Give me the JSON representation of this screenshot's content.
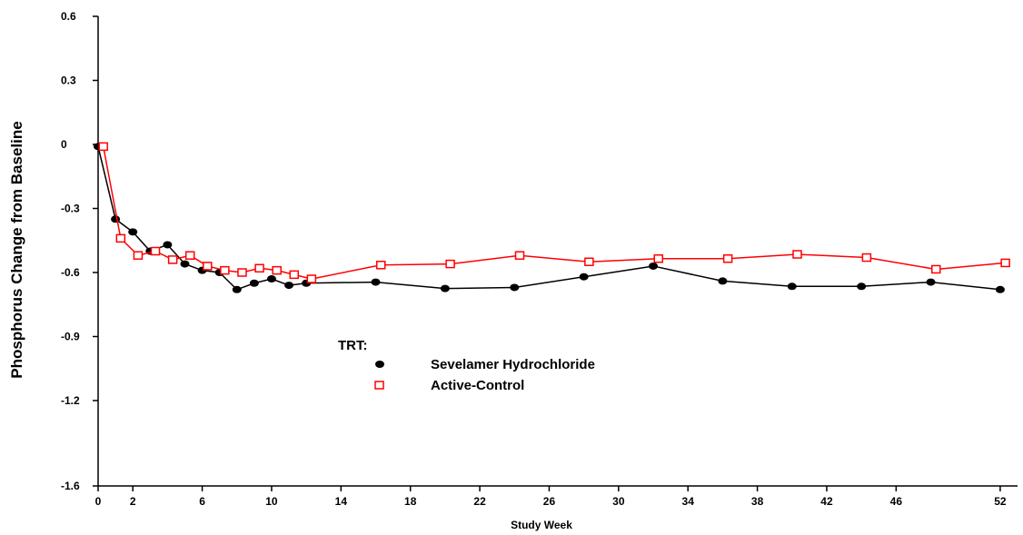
{
  "chart_data": {
    "type": "line",
    "title": "",
    "xlabel": "Study Week",
    "ylabel": "Phosphorus Change from Baseline",
    "x_ticks": [
      0,
      2,
      6,
      10,
      14,
      18,
      22,
      26,
      30,
      34,
      38,
      42,
      46,
      52
    ],
    "y_ticks": [
      0.6,
      0.3,
      0,
      -0.3,
      -0.6,
      -0.9,
      -1.2,
      -1.6
    ],
    "y_tick_labels": [
      "0.6",
      "0.3",
      "0",
      "-0.3",
      "-0.6",
      "-0.9",
      "-1.2",
      "-1.6"
    ],
    "xlim": [
      0,
      53
    ],
    "ylim": [
      -1.6,
      0.6
    ],
    "grid": false,
    "legend": {
      "title": "TRT:",
      "placement": "center"
    },
    "series": [
      {
        "name": "Sevelamer Hydrochloride",
        "color": "#000000",
        "marker": "filled-ellipse",
        "x": [
          0,
          1,
          2,
          3,
          4,
          5,
          6,
          7,
          8,
          9,
          10,
          11,
          12,
          16,
          20,
          24,
          28,
          32,
          36,
          40,
          44,
          48,
          52
        ],
        "y": [
          -0.01,
          -0.35,
          -0.41,
          -0.5,
          -0.47,
          -0.56,
          -0.59,
          -0.6,
          -0.68,
          -0.65,
          -0.63,
          -0.66,
          -0.65,
          -0.645,
          -0.675,
          -0.67,
          -0.62,
          -0.57,
          -0.64,
          -0.665,
          -0.665,
          -0.645,
          -0.68
        ]
      },
      {
        "name": "Active-Control",
        "color": "#ff0000",
        "marker": "open-square",
        "x": [
          0.3,
          1.3,
          2.3,
          3.3,
          4.3,
          5.3,
          6.3,
          7.3,
          8.3,
          9.3,
          10.3,
          11.3,
          12.3,
          16.3,
          20.3,
          24.3,
          28.3,
          32.3,
          36.3,
          40.3,
          44.3,
          48.3,
          52.3
        ],
        "y": [
          -0.01,
          -0.44,
          -0.52,
          -0.5,
          -0.54,
          -0.52,
          -0.57,
          -0.59,
          -0.6,
          -0.58,
          -0.59,
          -0.61,
          -0.63,
          -0.565,
          -0.56,
          -0.52,
          -0.55,
          -0.535,
          -0.535,
          -0.515,
          -0.53,
          -0.585,
          -0.555
        ]
      }
    ]
  }
}
